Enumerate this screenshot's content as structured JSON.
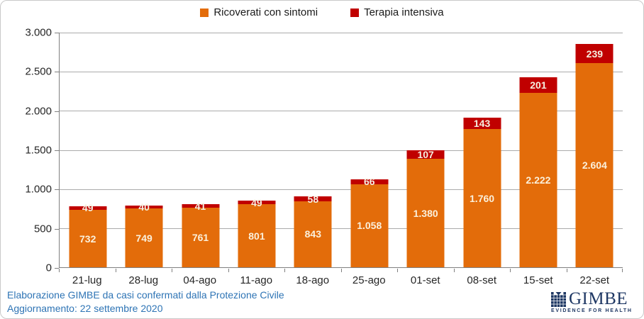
{
  "legend": [
    {
      "label": "Ricoverati con sintomi",
      "color": "#e36c0a"
    },
    {
      "label": "Terapia intensiva",
      "color": "#c00000"
    }
  ],
  "chart_data": {
    "type": "bar",
    "stacked": true,
    "title": "",
    "xlabel": "",
    "ylabel": "",
    "grid": true,
    "legend_position": "top",
    "ylim": [
      0,
      3000
    ],
    "categories": [
      "21-lug",
      "28-lug",
      "04-ago",
      "11-ago",
      "18-ago",
      "25-ago",
      "01-set",
      "08-set",
      "15-set",
      "22-set"
    ],
    "series": [
      {
        "name": "Ricoverati con sintomi",
        "color": "#e36c0a",
        "label_color": "#fbf0db",
        "values": [
          732,
          749,
          761,
          801,
          843,
          1058,
          1380,
          1760,
          2222,
          2604
        ],
        "labels": [
          "732",
          "749",
          "761",
          "801",
          "843",
          "1.058",
          "1.380",
          "1.760",
          "2.222",
          "2.604"
        ]
      },
      {
        "name": "Terapia intensiva",
        "color": "#c00000",
        "label_color": "#f5f0e1",
        "values": [
          49,
          40,
          41,
          49,
          58,
          66,
          107,
          143,
          201,
          239
        ],
        "labels": [
          "49",
          "40",
          "41",
          "49",
          "58",
          "66",
          "107",
          "143",
          "201",
          "239"
        ]
      }
    ],
    "y_ticks": [
      {
        "value": 0,
        "label": "0"
      },
      {
        "value": 500,
        "label": "500"
      },
      {
        "value": 1000,
        "label": "1.000"
      },
      {
        "value": 1500,
        "label": "1.500"
      },
      {
        "value": 2000,
        "label": "2.000"
      },
      {
        "value": 2500,
        "label": "2.500"
      },
      {
        "value": 3000,
        "label": "3.000"
      }
    ]
  },
  "footer": {
    "line1": "Elaborazione GIMBE da casi confermati dalla Protezione Civile",
    "line2": "Aggiornamento: 22 settembre 2020"
  },
  "logo": {
    "name": "GIMBE",
    "tagline": "EVIDENCE FOR HEALTH",
    "color": "#1f3864"
  }
}
